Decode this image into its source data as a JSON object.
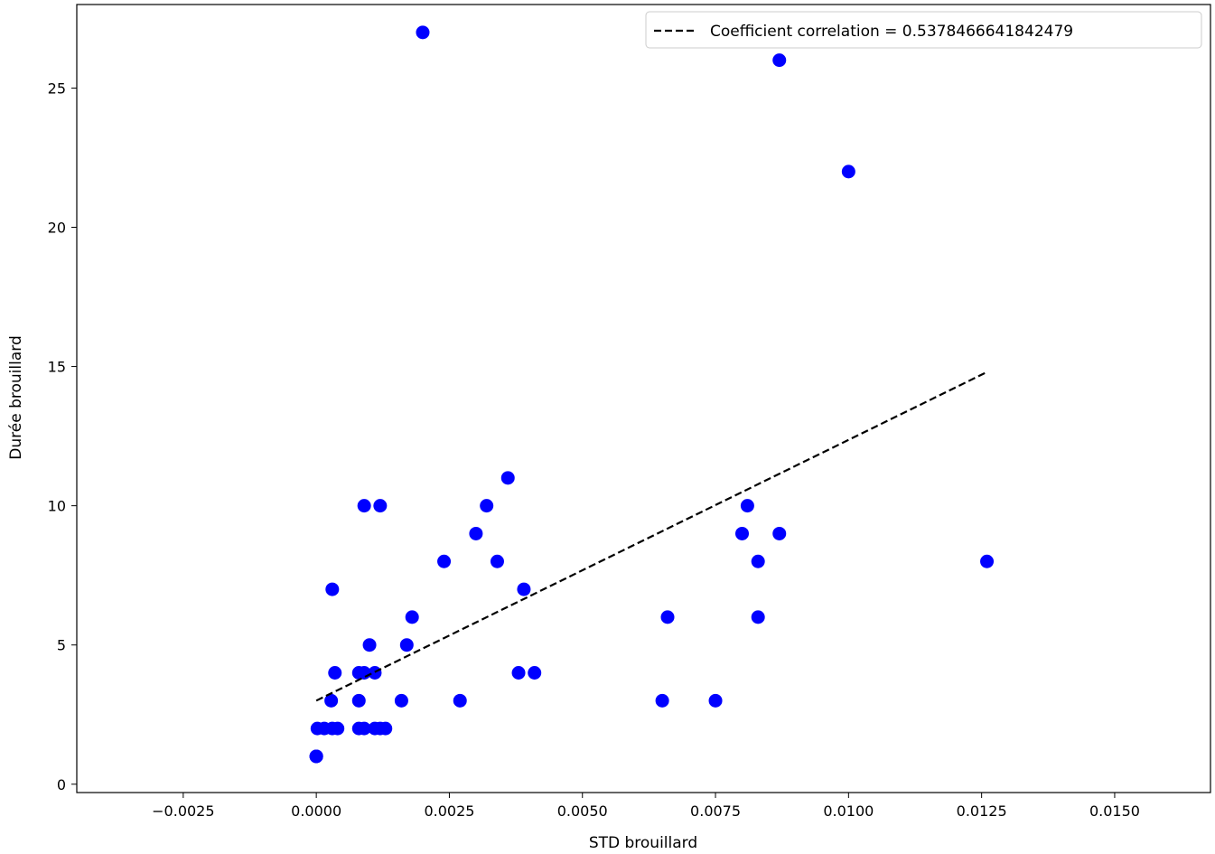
{
  "chart_data": {
    "type": "scatter",
    "xlabel": "STD brouillard",
    "ylabel": "Durée brouillard",
    "xlim": [
      -0.0045,
      0.0168
    ],
    "ylim": [
      -0.3,
      28.0
    ],
    "x_ticks": [
      -0.0025,
      0.0,
      0.0025,
      0.005,
      0.0075,
      0.01,
      0.0125,
      0.015
    ],
    "x_tick_labels": [
      "−0.0025",
      "0.0000",
      "0.0025",
      "0.0050",
      "0.0075",
      "0.0100",
      "0.0125",
      "0.0150"
    ],
    "y_ticks": [
      0,
      5,
      10,
      15,
      20,
      25
    ],
    "y_tick_labels": [
      "0",
      "5",
      "10",
      "15",
      "20",
      "25"
    ],
    "marker_color": "#0000ff",
    "trend_line": {
      "label": "Coefficient correlation = 0.5378466641842479",
      "color": "#000000",
      "style": "dashed",
      "x": [
        0.0,
        0.0126
      ],
      "y": [
        3.0,
        14.8
      ]
    },
    "legend": {
      "position": "upper right"
    },
    "points": [
      {
        "x": 0.0,
        "y": 1
      },
      {
        "x": 0.0,
        "y": 1
      },
      {
        "x": 0.0,
        "y": 1
      },
      {
        "x": 2e-05,
        "y": 2
      },
      {
        "x": 0.00015,
        "y": 2
      },
      {
        "x": 0.0003,
        "y": 2
      },
      {
        "x": 0.0004,
        "y": 2
      },
      {
        "x": 0.0008,
        "y": 2
      },
      {
        "x": 0.0009,
        "y": 2
      },
      {
        "x": 0.0011,
        "y": 2
      },
      {
        "x": 0.0012,
        "y": 2
      },
      {
        "x": 0.0013,
        "y": 2
      },
      {
        "x": 0.00028,
        "y": 3
      },
      {
        "x": 0.0008,
        "y": 3
      },
      {
        "x": 0.0016,
        "y": 3
      },
      {
        "x": 0.0027,
        "y": 3
      },
      {
        "x": 0.0065,
        "y": 3
      },
      {
        "x": 0.0075,
        "y": 3
      },
      {
        "x": 0.00035,
        "y": 4
      },
      {
        "x": 0.0008,
        "y": 4
      },
      {
        "x": 0.0009,
        "y": 4
      },
      {
        "x": 0.0011,
        "y": 4
      },
      {
        "x": 0.0038,
        "y": 4
      },
      {
        "x": 0.0041,
        "y": 4
      },
      {
        "x": 0.001,
        "y": 5
      },
      {
        "x": 0.0017,
        "y": 5
      },
      {
        "x": 0.0018,
        "y": 6
      },
      {
        "x": 0.0066,
        "y": 6
      },
      {
        "x": 0.0083,
        "y": 6
      },
      {
        "x": 0.0003,
        "y": 7
      },
      {
        "x": 0.0039,
        "y": 7
      },
      {
        "x": 0.0024,
        "y": 8
      },
      {
        "x": 0.0034,
        "y": 8
      },
      {
        "x": 0.0083,
        "y": 8
      },
      {
        "x": 0.0126,
        "y": 8
      },
      {
        "x": 0.003,
        "y": 9
      },
      {
        "x": 0.008,
        "y": 9
      },
      {
        "x": 0.0087,
        "y": 9
      },
      {
        "x": 0.0009,
        "y": 10
      },
      {
        "x": 0.0012,
        "y": 10
      },
      {
        "x": 0.0032,
        "y": 10
      },
      {
        "x": 0.0081,
        "y": 10
      },
      {
        "x": 0.0036,
        "y": 11
      },
      {
        "x": 0.01,
        "y": 22
      },
      {
        "x": 0.0087,
        "y": 26
      },
      {
        "x": 0.002,
        "y": 27
      }
    ]
  }
}
